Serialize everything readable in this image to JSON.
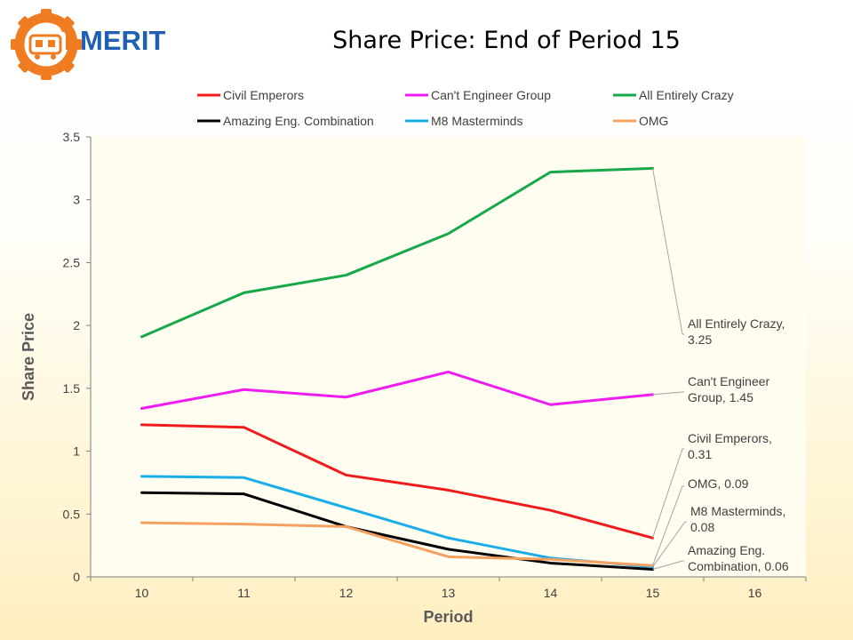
{
  "header": {
    "logo_text": "MERIT",
    "title": "Share Price: End of Period 15"
  },
  "colors": {
    "logo_gear": "#f07c22",
    "logo_text": "#1f5fb4",
    "plot_background": "#fffcf0"
  },
  "chart_data": {
    "type": "line",
    "title": "Share Price: End of Period 15",
    "xlabel": "Period",
    "ylabel": "Share Price",
    "x": [
      10,
      11,
      12,
      13,
      14,
      15
    ],
    "xlim": [
      10,
      16
    ],
    "xticks": [
      "10",
      "11",
      "12",
      "13",
      "14",
      "15",
      "16"
    ],
    "ylim": [
      0,
      3.5
    ],
    "yticks": [
      "0",
      "0.5",
      "1",
      "1.5",
      "2",
      "2.5",
      "3",
      "3.5"
    ],
    "grid": false,
    "legend_position": "top",
    "series": [
      {
        "name": "Civil Emperors",
        "color": "#ee1c1c",
        "values": [
          1.21,
          1.19,
          0.81,
          0.69,
          0.53,
          0.31
        ]
      },
      {
        "name": "Can't Engineer Group",
        "color": "#ee1cee",
        "values": [
          1.34,
          1.49,
          1.43,
          1.63,
          1.37,
          1.45
        ]
      },
      {
        "name": "All Entirely Crazy",
        "color": "#16a84a",
        "values": [
          1.91,
          2.26,
          2.4,
          2.73,
          3.22,
          3.25
        ]
      },
      {
        "name": "Amazing Eng. Combination",
        "color": "#000000",
        "values": [
          0.67,
          0.66,
          0.4,
          0.22,
          0.11,
          0.06
        ]
      },
      {
        "name": "M8 Masterminds",
        "color": "#19aee8",
        "values": [
          0.8,
          0.79,
          0.55,
          0.31,
          0.15,
          0.08
        ]
      },
      {
        "name": "OMG",
        "color": "#f4a060",
        "values": [
          0.43,
          0.42,
          0.4,
          0.16,
          0.14,
          0.09
        ]
      }
    ],
    "annotations": [
      {
        "series": "All Entirely Crazy",
        "lines": [
          "All Entirely Crazy,",
          "3.25"
        ]
      },
      {
        "series": "Can't Engineer Group",
        "lines": [
          "Can't Engineer",
          "Group, 1.45"
        ]
      },
      {
        "series": "Civil Emperors",
        "lines": [
          "Civil Emperors,",
          "0.31"
        ]
      },
      {
        "series": "OMG",
        "lines": [
          "OMG, 0.09"
        ]
      },
      {
        "series": "M8 Masterminds",
        "lines": [
          "M8 Masterminds,",
          "0.08"
        ]
      },
      {
        "series": "Amazing Eng. Combination",
        "lines": [
          "Amazing Eng.",
          "Combination, 0.06"
        ]
      }
    ]
  }
}
